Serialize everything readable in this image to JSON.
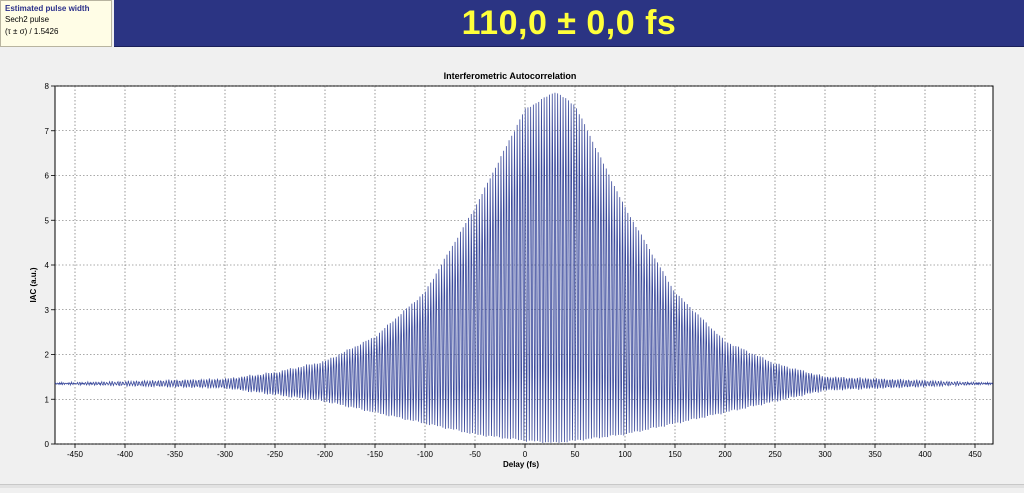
{
  "info": {
    "title": "Estimated pulse width",
    "pulse_type": "Sech2 pulse",
    "formula": "(τ ± σ) / 1.5426"
  },
  "banner": {
    "value_text": "110,0 ± 0,0 fs"
  },
  "colors": {
    "banner_bg": "#2b3483",
    "banner_text": "#ffff3a",
    "trace": "#3b4a9c"
  },
  "chart_data": {
    "type": "line",
    "title": "Interferometric Autocorrelation",
    "xlabel": "Delay (fs)",
    "ylabel": "IAC (a.u.)",
    "xlim": [
      -470,
      468
    ],
    "ylim": [
      0,
      8
    ],
    "grid": true,
    "x_ticks": [
      -450,
      -400,
      -350,
      -300,
      -250,
      -200,
      -150,
      -100,
      -50,
      0,
      50,
      100,
      150,
      200,
      250,
      300,
      350,
      400,
      450
    ],
    "y_ticks": [
      0,
      1,
      2,
      3,
      4,
      5,
      6,
      7,
      8
    ],
    "series": [
      {
        "baseline": 1.35,
        "center_fs": 30,
        "fringe_period_fs": 2.7,
        "envelope_delay_fs": [
          -470,
          -300,
          -250,
          -200,
          -150,
          -100,
          -50,
          0,
          30,
          50,
          100,
          150,
          200,
          250,
          300,
          468
        ],
        "upper_envelope": [
          1.35,
          1.45,
          1.6,
          1.85,
          2.4,
          3.4,
          5.3,
          7.5,
          7.9,
          7.6,
          5.3,
          3.4,
          2.3,
          1.8,
          1.5,
          1.35
        ],
        "lower_envelope": [
          1.35,
          1.25,
          1.1,
          0.95,
          0.7,
          0.45,
          0.2,
          0.05,
          0.0,
          0.05,
          0.2,
          0.45,
          0.7,
          0.95,
          1.2,
          1.35
        ]
      }
    ]
  }
}
